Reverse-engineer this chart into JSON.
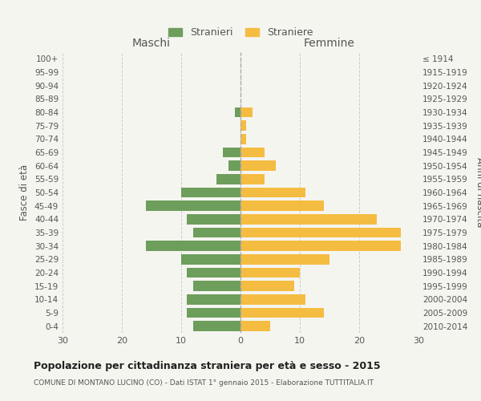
{
  "age_groups": [
    "0-4",
    "5-9",
    "10-14",
    "15-19",
    "20-24",
    "25-29",
    "30-34",
    "35-39",
    "40-44",
    "45-49",
    "50-54",
    "55-59",
    "60-64",
    "65-69",
    "70-74",
    "75-79",
    "80-84",
    "85-89",
    "90-94",
    "95-99",
    "100+"
  ],
  "birth_years": [
    "2010-2014",
    "2005-2009",
    "2000-2004",
    "1995-1999",
    "1990-1994",
    "1985-1989",
    "1980-1984",
    "1975-1979",
    "1970-1974",
    "1965-1969",
    "1960-1964",
    "1955-1959",
    "1950-1954",
    "1945-1949",
    "1940-1944",
    "1935-1939",
    "1930-1934",
    "1925-1929",
    "1920-1924",
    "1915-1919",
    "≤ 1914"
  ],
  "maschi": [
    8,
    9,
    9,
    8,
    9,
    10,
    16,
    8,
    9,
    16,
    10,
    4,
    2,
    3,
    0,
    0,
    1,
    0,
    0,
    0,
    0
  ],
  "femmine": [
    5,
    14,
    11,
    9,
    10,
    15,
    27,
    27,
    23,
    14,
    11,
    4,
    6,
    4,
    1,
    1,
    2,
    0,
    0,
    0,
    0
  ],
  "color_maschi": "#6d9e5c",
  "color_femmine": "#f5bc42",
  "bg_color": "#f5f5f0",
  "grid_color": "#cccccc",
  "title": "Popolazione per cittadinanza straniera per età e sesso - 2015",
  "subtitle": "COMUNE DI MONTANO LUCINO (CO) - Dati ISTAT 1° gennaio 2015 - Elaborazione TUTTITALIA.IT",
  "xlabel_left": "Maschi",
  "xlabel_right": "Femmine",
  "ylabel_left": "Fasce di età",
  "ylabel_right": "Anni di nascita",
  "legend_maschi": "Stranieri",
  "legend_femmine": "Straniere",
  "xlim": 30,
  "bar_height": 0.75
}
